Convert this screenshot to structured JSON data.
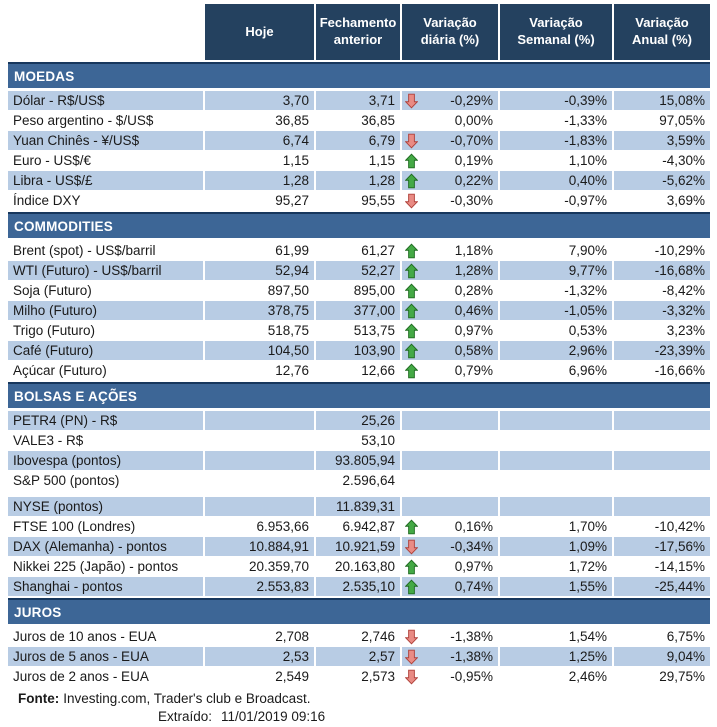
{
  "header": {
    "columns": [
      "Hoje",
      "Fechamento anterior",
      "Variação diária (%)",
      "Variação Semanal (%)",
      "Variação Anual (%)"
    ]
  },
  "sections": [
    {
      "title": "MOEDAS",
      "rows": [
        {
          "label": "Dólar - R$/US$",
          "hoje": "3,70",
          "fechamento": "3,71",
          "arrow": "down",
          "var_diaria": "-0,29%",
          "var_semanal": "-0,39%",
          "var_anual": "15,08%",
          "shaded": true
        },
        {
          "label": "Peso argentino - $/US$",
          "hoje": "36,85",
          "fechamento": "36,85",
          "arrow": "",
          "var_diaria": "0,00%",
          "var_semanal": "-1,33%",
          "var_anual": "97,05%",
          "shaded": false
        },
        {
          "label": "Yuan Chinês - ¥/US$",
          "hoje": "6,74",
          "fechamento": "6,79",
          "arrow": "down",
          "var_diaria": "-0,70%",
          "var_semanal": "-1,83%",
          "var_anual": "3,59%",
          "shaded": true
        },
        {
          "label": "Euro - US$/€",
          "hoje": "1,15",
          "fechamento": "1,15",
          "arrow": "up",
          "var_diaria": "0,19%",
          "var_semanal": "1,10%",
          "var_anual": "-4,30%",
          "shaded": false
        },
        {
          "label": "Libra - US$/£",
          "hoje": "1,28",
          "fechamento": "1,28",
          "arrow": "up",
          "var_diaria": "0,22%",
          "var_semanal": "0,40%",
          "var_anual": "-5,62%",
          "shaded": true
        },
        {
          "label": "Índice DXY",
          "hoje": "95,27",
          "fechamento": "95,55",
          "arrow": "down",
          "var_diaria": "-0,30%",
          "var_semanal": "-0,97%",
          "var_anual": "3,69%",
          "shaded": false
        }
      ]
    },
    {
      "title": "COMMODITIES",
      "rows": [
        {
          "label": "Brent (spot) - US$/barril",
          "hoje": "61,99",
          "fechamento": "61,27",
          "arrow": "up",
          "var_diaria": "1,18%",
          "var_semanal": "7,90%",
          "var_anual": "-10,29%",
          "shaded": false
        },
        {
          "label": "WTI (Futuro) - US$/barril",
          "hoje": "52,94",
          "fechamento": "52,27",
          "arrow": "up",
          "var_diaria": "1,28%",
          "var_semanal": "9,77%",
          "var_anual": "-16,68%",
          "shaded": true
        },
        {
          "label": "Soja (Futuro)",
          "hoje": "897,50",
          "fechamento": "895,00",
          "arrow": "up",
          "var_diaria": "0,28%",
          "var_semanal": "-1,32%",
          "var_anual": "-8,42%",
          "shaded": false
        },
        {
          "label": "Milho (Futuro)",
          "hoje": "378,75",
          "fechamento": "377,00",
          "arrow": "up",
          "var_diaria": "0,46%",
          "var_semanal": "-1,05%",
          "var_anual": "-3,32%",
          "shaded": true
        },
        {
          "label": "Trigo (Futuro)",
          "hoje": "518,75",
          "fechamento": "513,75",
          "arrow": "up",
          "var_diaria": "0,97%",
          "var_semanal": "0,53%",
          "var_anual": "3,23%",
          "shaded": false
        },
        {
          "label": "Café (Futuro)",
          "hoje": "104,50",
          "fechamento": "103,90",
          "arrow": "up",
          "var_diaria": "0,58%",
          "var_semanal": "2,96%",
          "var_anual": "-23,39%",
          "shaded": true
        },
        {
          "label": "Açúcar (Futuro)",
          "hoje": "12,76",
          "fechamento": "12,66",
          "arrow": "up",
          "var_diaria": "0,79%",
          "var_semanal": "6,96%",
          "var_anual": "-16,66%",
          "shaded": false
        }
      ]
    },
    {
      "title": "BOLSAS E AÇÕES",
      "rows": [
        {
          "label": "PETR4 (PN) - R$",
          "hoje": "",
          "fechamento": "25,26",
          "arrow": "",
          "var_diaria": "",
          "var_semanal": "",
          "var_anual": "",
          "shaded": true
        },
        {
          "label": "VALE3 - R$",
          "hoje": "",
          "fechamento": "53,10",
          "arrow": "",
          "var_diaria": "",
          "var_semanal": "",
          "var_anual": "",
          "shaded": false
        },
        {
          "label": "Ibovespa (pontos)",
          "hoje": "",
          "fechamento": "93.805,94",
          "arrow": "",
          "var_diaria": "",
          "var_semanal": "",
          "var_anual": "",
          "shaded": true
        },
        {
          "label": "S&P 500 (pontos)",
          "hoje": "",
          "fechamento": "2.596,64",
          "arrow": "",
          "var_diaria": "",
          "var_semanal": "",
          "var_anual": "",
          "shaded": false
        },
        {
          "label": "NYSE (pontos)",
          "hoje": "",
          "fechamento": "11.839,31",
          "arrow": "",
          "var_diaria": "",
          "var_semanal": "",
          "var_anual": "",
          "shaded": true,
          "gap_before": true
        },
        {
          "label": "FTSE 100 (Londres)",
          "hoje": "6.953,66",
          "fechamento": "6.942,87",
          "arrow": "up",
          "var_diaria": "0,16%",
          "var_semanal": "1,70%",
          "var_anual": "-10,42%",
          "shaded": false
        },
        {
          "label": "DAX (Alemanha) - pontos",
          "hoje": "10.884,91",
          "fechamento": "10.921,59",
          "arrow": "down",
          "var_diaria": "-0,34%",
          "var_semanal": "1,09%",
          "var_anual": "-17,56%",
          "shaded": true
        },
        {
          "label": "Nikkei 225 (Japão) - pontos",
          "hoje": "20.359,70",
          "fechamento": "20.163,80",
          "arrow": "up",
          "var_diaria": "0,97%",
          "var_semanal": "1,72%",
          "var_anual": "-14,15%",
          "shaded": false
        },
        {
          "label": "Shanghai - pontos",
          "hoje": "2.553,83",
          "fechamento": "2.535,10",
          "arrow": "up",
          "var_diaria": "0,74%",
          "var_semanal": "1,55%",
          "var_anual": "-25,44%",
          "shaded": true
        }
      ]
    },
    {
      "title": "JUROS",
      "rows": [
        {
          "label": "Juros de 10 anos - EUA",
          "hoje": "2,708",
          "fechamento": "2,746",
          "arrow": "down",
          "var_diaria": "-1,38%",
          "var_semanal": "1,54%",
          "var_anual": "6,75%",
          "shaded": false
        },
        {
          "label": "Juros de 5 anos - EUA",
          "hoje": "2,53",
          "fechamento": "2,57",
          "arrow": "down",
          "var_diaria": "-1,38%",
          "var_semanal": "1,25%",
          "var_anual": "9,04%",
          "shaded": true
        },
        {
          "label": "Juros de 2 anos - EUA",
          "hoje": "2,549",
          "fechamento": "2,573",
          "arrow": "down",
          "var_diaria": "-0,95%",
          "var_semanal": "2,46%",
          "var_anual": "29,75%",
          "shaded": false
        }
      ]
    }
  ],
  "footer": {
    "fonte_label": "Fonte:",
    "fonte_text": "Investing.com, Trader's club e Broadcast.",
    "extraido_label": "Extraído:",
    "extraido_value": "11/01/2019 09:16"
  },
  "colors": {
    "header_bg": "#24415F",
    "band_bg": "#3D6696",
    "band_border": "#17375D",
    "row_shaded": "#B8CCE4",
    "text": "#1A1A1A",
    "arrow_up_fill": "#44A945",
    "arrow_up_stroke": "#1F6B21",
    "arrow_down_fill": "#E98B84",
    "arrow_down_stroke": "#B0413A"
  }
}
